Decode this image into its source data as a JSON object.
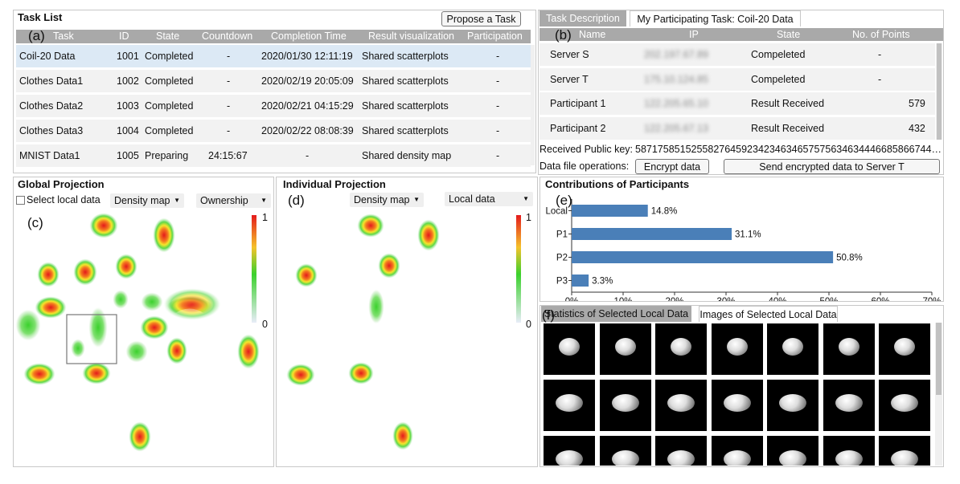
{
  "task_list": {
    "title": "Task List",
    "tag": "(a)",
    "propose_button": "Propose a Task",
    "columns": [
      "Task",
      "ID",
      "State",
      "Countdown",
      "Completion Time",
      "Result visualization",
      "Participation"
    ],
    "rows": [
      {
        "task": "Coil-20 Data",
        "id": "1001",
        "state": "Completed",
        "countdown": "-",
        "time": "2020/01/30 12:11:19",
        "vis": "Shared scatterplots",
        "part": "-"
      },
      {
        "task": "Clothes Data1",
        "id": "1002",
        "state": "Completed",
        "countdown": "-",
        "time": "2020/02/19 20:05:09",
        "vis": "Shared scatterplots",
        "part": "-"
      },
      {
        "task": "Clothes Data2",
        "id": "1003",
        "state": "Completed",
        "countdown": "-",
        "time": "2020/02/21 04:15:29",
        "vis": "Shared scatterplots",
        "part": "-"
      },
      {
        "task": "Clothes Data3",
        "id": "1004",
        "state": "Completed",
        "countdown": "-",
        "time": "2020/02/22 08:08:39",
        "vis": "Shared scatterplots",
        "part": "-"
      },
      {
        "task": "MNIST Data1",
        "id": "1005",
        "state": "Preparing",
        "countdown": "24:15:67",
        "time": "-",
        "vis": "Shared density map",
        "part": "-"
      }
    ]
  },
  "task_panel": {
    "tag": "(b)",
    "tabs": [
      "Task Description",
      "My Participating Task: Coil-20 Data"
    ],
    "columns": [
      "Name",
      "IP",
      "State",
      "No. of Points"
    ],
    "rows": [
      {
        "name": "Server S",
        "ip": "202.197.67.89",
        "state": "Compeleted",
        "points": "-"
      },
      {
        "name": "Server T",
        "ip": "175.10.124.85",
        "state": "Compeleted",
        "points": "-"
      },
      {
        "name": "Participant 1",
        "ip": "122.205.65.10",
        "state": "Result Received",
        "points": "579"
      },
      {
        "name": "Participant 2",
        "ip": "122.205.67.13",
        "state": "Result Received",
        "points": "432"
      }
    ],
    "public_key_label": "Received Public key:",
    "public_key_value": "58717585152558276459234234634657575634634446685866744…",
    "file_ops_label": "Data file operations:",
    "encrypt_button": "Encrypt data",
    "send_button": "Send encrypted data to Server T"
  },
  "global_projection": {
    "title": "Global Projection",
    "tag": "(c)",
    "checkbox_label": "Select local data",
    "mode_select": "Density map",
    "color_select": "Ownership",
    "legend_max": "1",
    "legend_min": "0"
  },
  "individual_projection": {
    "title": "Individual Projection",
    "tag": "(d)",
    "mode_select": "Density map",
    "data_select": "Local data",
    "legend_max": "1",
    "legend_min": "0"
  },
  "contributions": {
    "title": "Contributions of Participants",
    "tag": "(e)"
  },
  "chart_data": {
    "type": "bar",
    "orientation": "horizontal",
    "categories": [
      "Local",
      "P1",
      "P2",
      "P3"
    ],
    "values": [
      14.8,
      31.1,
      50.8,
      3.3
    ],
    "value_labels": [
      "14.8%",
      "31.1%",
      "50.8%",
      "3.3%"
    ],
    "xlim": [
      0,
      70
    ],
    "ticks": [
      "0%",
      "10%",
      "20%",
      "30%",
      "40%",
      "50%",
      "60%",
      "70%"
    ],
    "bar_color": "#4a7fb8"
  },
  "local_data": {
    "tag": "(f)",
    "tabs": [
      "Statistics of Selected Local Data",
      "Images of Selected Local Data"
    ]
  }
}
